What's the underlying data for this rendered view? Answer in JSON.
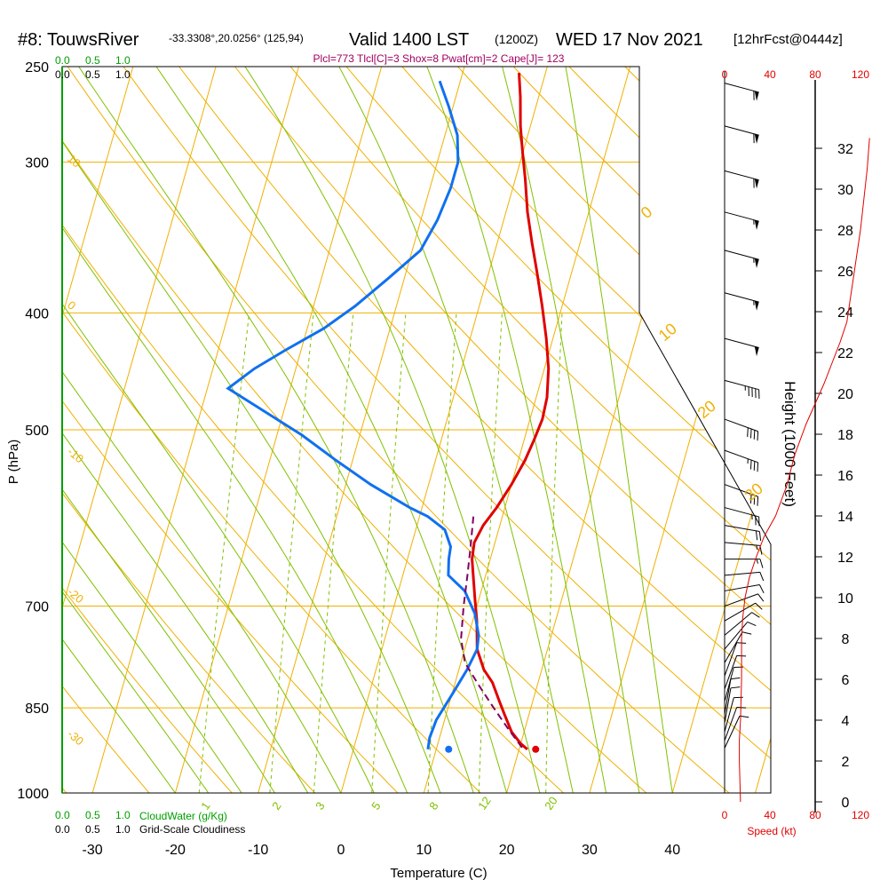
{
  "header": {
    "station": "#8: TouwsRiver",
    "coords": "-33.3308°,20.0256° (125,94)",
    "valid": "Valid 1400 LST",
    "zulu": "(1200Z)",
    "date": "WED 17 Nov 2021",
    "forecast": "[12hrFcst@0444z]",
    "indices": "Plcl=773 Tlcl[C]=3 Shox=8 Pwat[cm]=2 Cape[J]= 123"
  },
  "colors": {
    "isotherm": "#f0b000",
    "dry_adiabat": "#f0b000",
    "moist_adiabat": "#80c000",
    "mixing_ratio": "#80c000",
    "temperature": "#e00000",
    "dewpoint": "#1070f0",
    "parcel": "#800060",
    "cloud_scale": "#00a000",
    "speed": "#e00000",
    "indices": "#a00060"
  },
  "chart_data": {
    "type": "line",
    "title": "",
    "xlabel": "Temperature (C)",
    "ylabel": "P (hPa)",
    "y_scale": "log",
    "xlim": [
      -35,
      36
    ],
    "ylim": [
      1000,
      250
    ],
    "x_ticks": [
      -30,
      -20,
      -10,
      0,
      10,
      20,
      30,
      40
    ],
    "x_tick_labels": [
      "-30",
      "-20",
      "-10",
      "0",
      "10",
      "20",
      "30",
      "40"
    ],
    "y_ticks": [
      250,
      300,
      400,
      500,
      700,
      850,
      1000
    ],
    "y_tick_labels": [
      "250",
      "300",
      "400",
      "500",
      "700",
      "850",
      "1000"
    ],
    "series": [
      {
        "name": "temperature",
        "color": "#e00000",
        "points": [
          [
            21,
            920
          ],
          [
            20,
            910
          ],
          [
            18.5,
            890
          ],
          [
            17,
            860
          ],
          [
            16,
            840
          ],
          [
            14.5,
            810
          ],
          [
            13,
            790
          ],
          [
            11.5,
            760
          ],
          [
            10.5,
            720
          ],
          [
            9.5,
            690
          ],
          [
            8.5,
            660
          ],
          [
            7.8,
            640
          ],
          [
            7.5,
            620
          ],
          [
            8,
            600
          ],
          [
            9,
            580
          ],
          [
            10,
            555
          ],
          [
            10.8,
            530
          ],
          [
            11.2,
            510
          ],
          [
            11.5,
            490
          ],
          [
            11.3,
            470
          ],
          [
            10.5,
            445
          ],
          [
            9.2,
            420
          ],
          [
            7.6,
            395
          ],
          [
            5.8,
            370
          ],
          [
            4.2,
            350
          ],
          [
            2.6,
            330
          ],
          [
            1.2,
            310
          ],
          [
            0,
            295
          ],
          [
            -1.2,
            280
          ],
          [
            -2.2,
            265
          ],
          [
            -3.2,
            253
          ]
        ]
      },
      {
        "name": "dewpoint",
        "color": "#1070f0",
        "points": [
          [
            9,
            920
          ],
          [
            8.8,
            900
          ],
          [
            9,
            870
          ],
          [
            10,
            830
          ],
          [
            11,
            790
          ],
          [
            11.5,
            760
          ],
          [
            11.2,
            740
          ],
          [
            10,
            710
          ],
          [
            8,
            680
          ],
          [
            5.5,
            660
          ],
          [
            5,
            640
          ],
          [
            4.8,
            625
          ],
          [
            3.5,
            605
          ],
          [
            1,
            590
          ],
          [
            -1.5,
            580
          ],
          [
            -7,
            555
          ],
          [
            -12,
            530
          ],
          [
            -17,
            505
          ],
          [
            -23,
            480
          ],
          [
            -27.5,
            462
          ],
          [
            -25,
            445
          ],
          [
            -22,
            430
          ],
          [
            -18,
            412
          ],
          [
            -15,
            395
          ],
          [
            -12,
            375
          ],
          [
            -9,
            355
          ],
          [
            -8,
            335
          ],
          [
            -7.5,
            315
          ],
          [
            -7.5,
            300
          ],
          [
            -8.5,
            285
          ],
          [
            -10.5,
            270
          ],
          [
            -12.5,
            257
          ]
        ]
      },
      {
        "name": "parcel",
        "color": "#800060",
        "points": [
          [
            20.3,
            917
          ],
          [
            18,
            885
          ],
          [
            15.5,
            850
          ],
          [
            13,
            815
          ],
          [
            10.5,
            780
          ],
          [
            9.2,
            745
          ],
          [
            8.4,
            700
          ],
          [
            7.8,
            660
          ],
          [
            7.2,
            625
          ],
          [
            6.5,
            590
          ]
        ]
      }
    ],
    "surface_points": {
      "temperature": {
        "x": 22,
        "p": 920
      },
      "dewpoint": {
        "x": 11.5,
        "p": 920
      }
    },
    "isopleth_labels": {
      "dry_adiabat": [
        "-10",
        "0",
        "10",
        "20",
        "30",
        "-20",
        "-30"
      ],
      "moist_adiabat": [
        "0",
        "10",
        "20",
        "30"
      ],
      "mixing_ratio": [
        "1",
        "2",
        "3",
        "5",
        "8",
        "12",
        "20"
      ]
    },
    "cloud_scale": {
      "ticks": [
        "0.0",
        "0.5",
        "1.0"
      ],
      "cloudwater_label": "CloudWater (g/Kg)",
      "cloudiness_label": "Grid-Scale Cloudiness"
    },
    "height_axis": {
      "label": "Height (1000 Feet)",
      "ticks": [
        "0",
        "2",
        "4",
        "6",
        "8",
        "10",
        "12",
        "14",
        "16",
        "18",
        "20",
        "22",
        "24",
        "26",
        "28",
        "30",
        "32"
      ],
      "range": [
        0,
        33
      ]
    },
    "speed_axis": {
      "label": "Speed (kt)",
      "ticks": [
        "0",
        "40",
        "80",
        "120"
      ],
      "range": [
        0,
        120
      ]
    },
    "wind_speed_profile": [
      [
        14,
        0
      ],
      [
        13,
        2
      ],
      [
        13,
        3
      ],
      [
        14,
        4
      ],
      [
        15,
        6
      ],
      [
        15,
        8
      ],
      [
        16,
        9
      ],
      [
        18,
        10
      ],
      [
        22,
        11
      ],
      [
        28,
        12
      ],
      [
        35,
        13
      ],
      [
        45,
        14
      ],
      [
        55,
        15.5
      ],
      [
        62,
        17
      ],
      [
        72,
        18.5
      ],
      [
        80,
        19.5
      ],
      [
        88,
        20.5
      ],
      [
        95,
        21.5
      ],
      [
        102,
        22.5
      ],
      [
        108,
        23.5
      ],
      [
        112,
        25
      ],
      [
        116,
        26.5
      ],
      [
        120,
        28
      ],
      [
        123,
        29.5
      ],
      [
        126,
        31
      ],
      [
        128,
        32.5
      ]
    ],
    "wind_barbs": [
      {
        "p": 258,
        "dir": 285,
        "kt": 60
      },
      {
        "p": 280,
        "dir": 285,
        "kt": 60
      },
      {
        "p": 305,
        "dir": 285,
        "kt": 60
      },
      {
        "p": 330,
        "dir": 285,
        "kt": 55
      },
      {
        "p": 355,
        "dir": 285,
        "kt": 55
      },
      {
        "p": 385,
        "dir": 285,
        "kt": 55
      },
      {
        "p": 420,
        "dir": 285,
        "kt": 50
      },
      {
        "p": 455,
        "dir": 285,
        "kt": 45
      },
      {
        "p": 490,
        "dir": 290,
        "kt": 40
      },
      {
        "p": 520,
        "dir": 290,
        "kt": 35
      },
      {
        "p": 555,
        "dir": 290,
        "kt": 30
      },
      {
        "p": 580,
        "dir": 285,
        "kt": 25
      },
      {
        "p": 600,
        "dir": 280,
        "kt": 20
      },
      {
        "p": 620,
        "dir": 275,
        "kt": 15
      },
      {
        "p": 640,
        "dir": 270,
        "kt": 15
      },
      {
        "p": 660,
        "dir": 265,
        "kt": 10
      },
      {
        "p": 680,
        "dir": 260,
        "kt": 10
      },
      {
        "p": 700,
        "dir": 250,
        "kt": 10
      },
      {
        "p": 720,
        "dir": 240,
        "kt": 10
      },
      {
        "p": 740,
        "dir": 230,
        "kt": 10
      },
      {
        "p": 760,
        "dir": 220,
        "kt": 10
      },
      {
        "p": 780,
        "dir": 210,
        "kt": 10
      },
      {
        "p": 800,
        "dir": 200,
        "kt": 10
      },
      {
        "p": 820,
        "dir": 200,
        "kt": 10
      },
      {
        "p": 840,
        "dir": 195,
        "kt": 10
      },
      {
        "p": 860,
        "dir": 190,
        "kt": 10
      },
      {
        "p": 875,
        "dir": 190,
        "kt": 10
      },
      {
        "p": 890,
        "dir": 195,
        "kt": 10
      },
      {
        "p": 905,
        "dir": 200,
        "kt": 10
      },
      {
        "p": 918,
        "dir": 205,
        "kt": 10
      }
    ],
    "grid": true
  }
}
